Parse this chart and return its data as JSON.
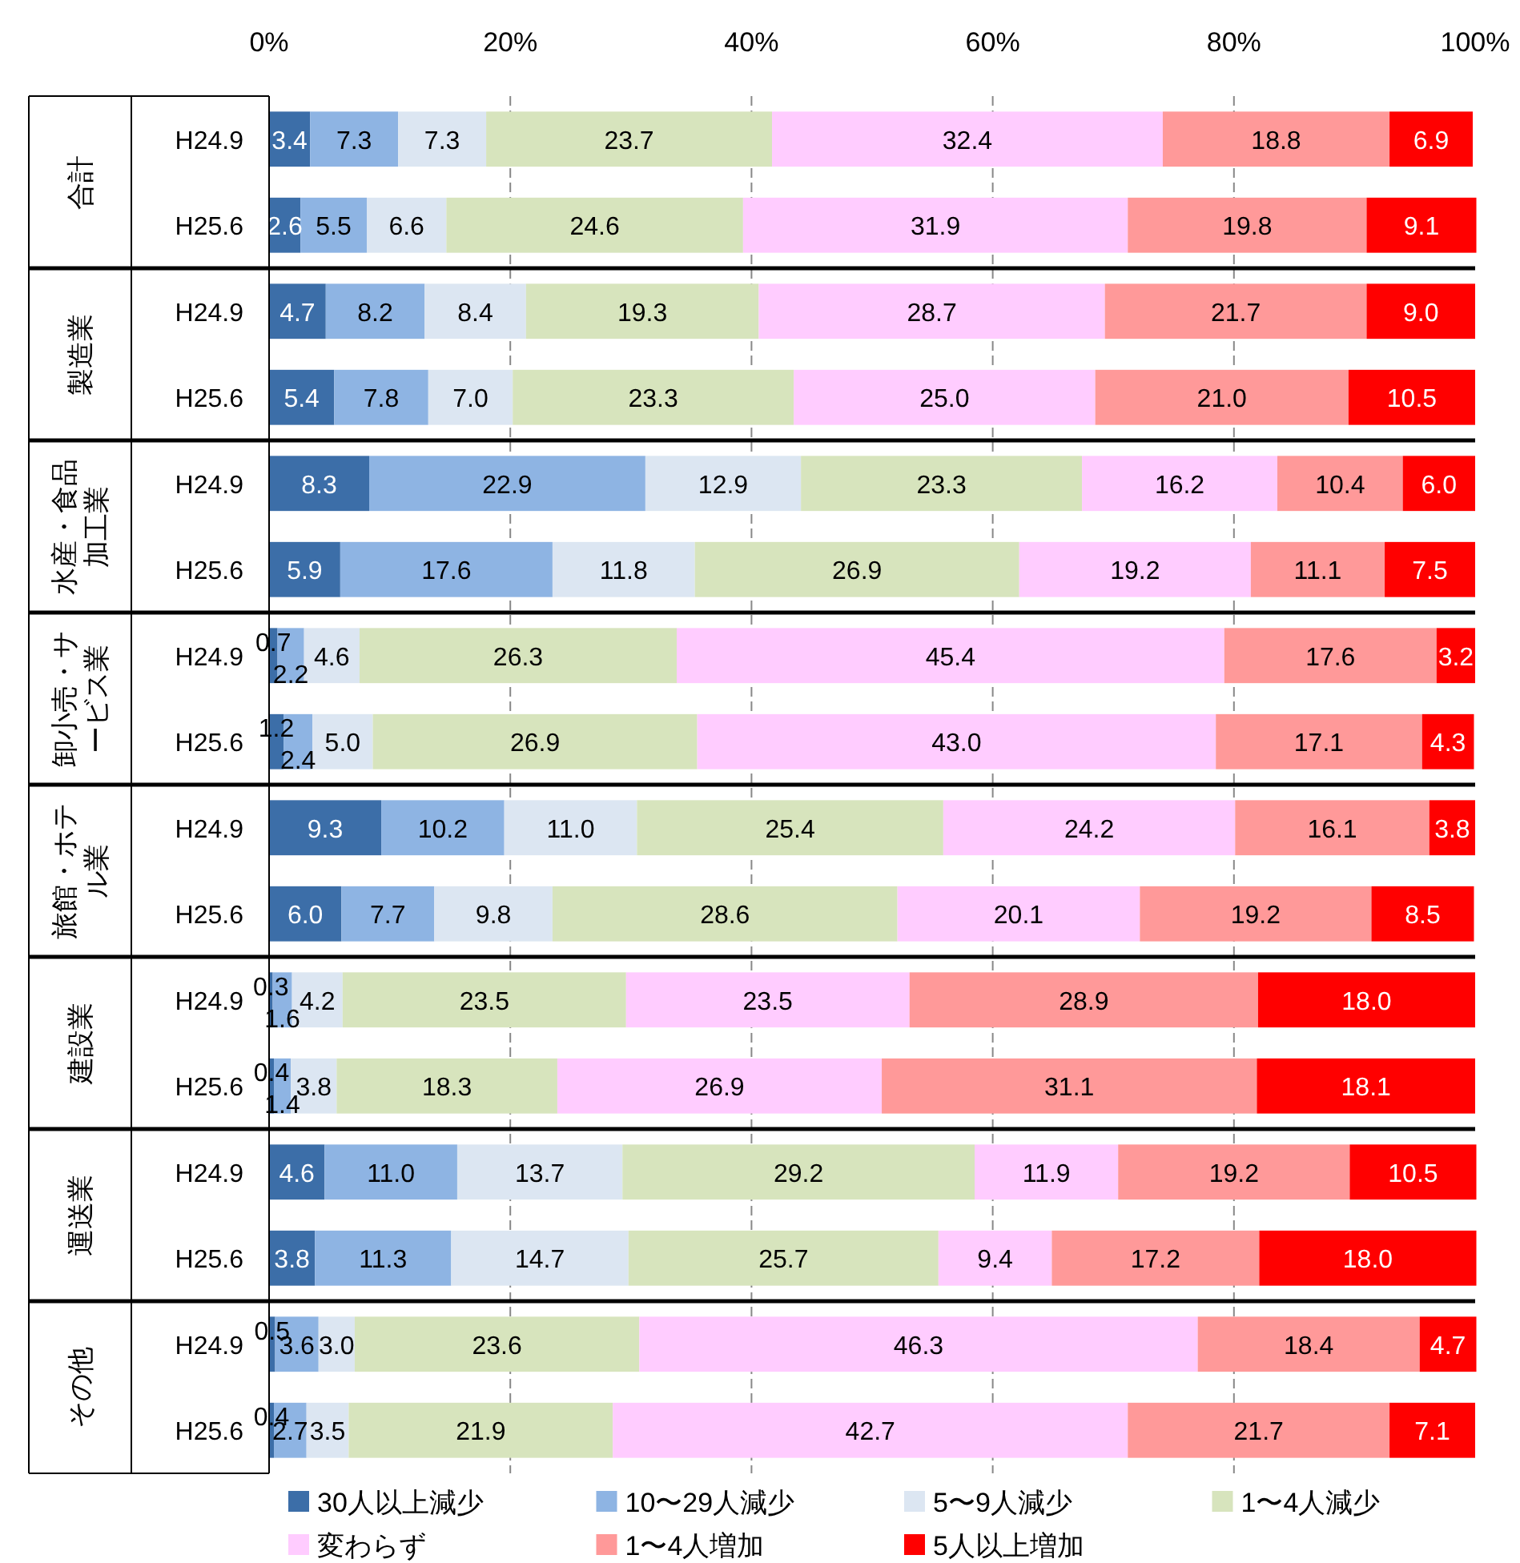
{
  "chart_data": {
    "type": "bar",
    "orientation": "horizontal",
    "stacked": true,
    "categories": [
      "H24.9",
      "H25.6",
      "H24.9",
      "H25.6",
      "H24.9",
      "H25.6",
      "H24.9",
      "H25.6",
      "H24.9",
      "H25.6",
      "H24.9",
      "H25.6",
      "H24.9",
      "H25.6",
      "H24.9",
      "H25.6"
    ],
    "annotations": [
      "合計",
      "製造業",
      "水産・食品加工業",
      "卸小売・サービス業",
      "旅館・ホテル業",
      "建設業",
      "運送業",
      "その他"
    ],
    "xlim": [
      0,
      100
    ],
    "xticks": [
      {
        "value": 0,
        "label": "0%"
      },
      {
        "value": 20,
        "label": "20%"
      },
      {
        "value": 40,
        "label": "40%"
      },
      {
        "value": 60,
        "label": "60%"
      },
      {
        "value": 80,
        "label": "80%"
      },
      {
        "value": 100,
        "label": "100%"
      }
    ],
    "grid": "x",
    "legend": "bottom",
    "series": [
      {
        "name": "30人以上減少",
        "color": "#3c6ea8",
        "values": [
          3.4,
          2.6,
          4.7,
          5.4,
          8.3,
          5.9,
          0.7,
          1.2,
          9.3,
          6.0,
          0.3,
          0.4,
          4.6,
          3.8,
          0.5,
          0.4
        ],
        "value_labels": [
          "3.4",
          "2.6",
          "4.7",
          "5.4",
          "8.3",
          "5.9",
          "0.7",
          "1.2",
          "9.3",
          "6.0",
          "0.3",
          "0.4",
          "4.6",
          "3.8",
          "0.5",
          "0.4"
        ]
      },
      {
        "name": "10〜29人減少",
        "color": "#8eb4e3",
        "values": [
          7.3,
          5.5,
          8.2,
          7.8,
          22.9,
          17.6,
          2.2,
          2.4,
          10.2,
          7.7,
          1.6,
          1.4,
          11.0,
          11.3,
          3.6,
          2.7
        ],
        "value_labels": [
          "7.3",
          "5.5",
          "8.2",
          "7.8",
          "22.9",
          "17.6",
          "2.2",
          "2.4",
          "10.2",
          "7.7",
          "1.6",
          "1.4",
          "11.0",
          "11.3",
          "3.6",
          "2.7"
        ]
      },
      {
        "name": "5〜9人減少",
        "color": "#dce6f2",
        "values": [
          7.3,
          6.6,
          8.4,
          7.0,
          12.9,
          11.8,
          4.6,
          5.0,
          11.0,
          9.8,
          4.2,
          3.8,
          13.7,
          14.7,
          3.0,
          3.5
        ],
        "value_labels": [
          "7.3",
          "6.6",
          "8.4",
          "7.0",
          "12.9",
          "11.8",
          "4.6",
          "5.0",
          "11.0",
          "9.8",
          "4.2",
          "3.8",
          "13.7",
          "14.7",
          "3.0",
          "3.5"
        ]
      },
      {
        "name": "1〜4人減少",
        "color": "#d7e4bd",
        "values": [
          23.7,
          24.6,
          19.3,
          23.3,
          23.3,
          26.9,
          26.3,
          26.9,
          25.4,
          28.6,
          23.5,
          18.3,
          29.2,
          25.7,
          23.6,
          21.9
        ],
        "value_labels": [
          "23.7",
          "24.6",
          "19.3",
          "23.3",
          "23.3",
          "26.9",
          "26.3",
          "26.9",
          "25.4",
          "28.6",
          "23.5",
          "18.3",
          "29.2",
          "25.7",
          "23.6",
          "21.9"
        ]
      },
      {
        "name": "変わらず",
        "color": "#ffccff",
        "values": [
          32.4,
          31.9,
          28.7,
          25.0,
          16.2,
          19.2,
          45.4,
          43.0,
          24.2,
          20.1,
          23.5,
          26.9,
          11.9,
          9.4,
          46.3,
          42.7
        ],
        "value_labels": [
          "32.4",
          "31.9",
          "28.7",
          "25.0",
          "16.2",
          "19.2",
          "45.4",
          "43.0",
          "24.2",
          "20.1",
          "23.5",
          "26.9",
          "11.9",
          "9.4",
          "46.3",
          "42.7"
        ]
      },
      {
        "name": "1〜4人増加",
        "color": "#ff9999",
        "values": [
          18.8,
          19.8,
          21.7,
          21.0,
          10.4,
          11.1,
          17.6,
          17.1,
          16.1,
          19.2,
          28.9,
          31.1,
          19.2,
          17.2,
          18.4,
          21.7
        ],
        "value_labels": [
          "18.8",
          "19.8",
          "21.7",
          "21.0",
          "10.4",
          "11.1",
          "17.6",
          "17.1",
          "16.1",
          "19.2",
          "28.9",
          "31.1",
          "19.2",
          "17.2",
          "18.4",
          "21.7"
        ]
      },
      {
        "name": "5人以上増加",
        "color": "#ff0000",
        "values": [
          6.9,
          9.1,
          9.0,
          10.5,
          6.0,
          7.5,
          3.2,
          4.3,
          3.8,
          8.5,
          18.0,
          18.1,
          10.5,
          18.0,
          4.7,
          7.1
        ],
        "value_labels": [
          "6.9",
          "9.1",
          "9.0",
          "10.5",
          "6.0",
          "7.5",
          "3.2",
          "4.3",
          "3.8",
          "8.5",
          "18.0",
          "18.1",
          "10.5",
          "18.0",
          "4.7",
          "7.1"
        ]
      }
    ]
  }
}
